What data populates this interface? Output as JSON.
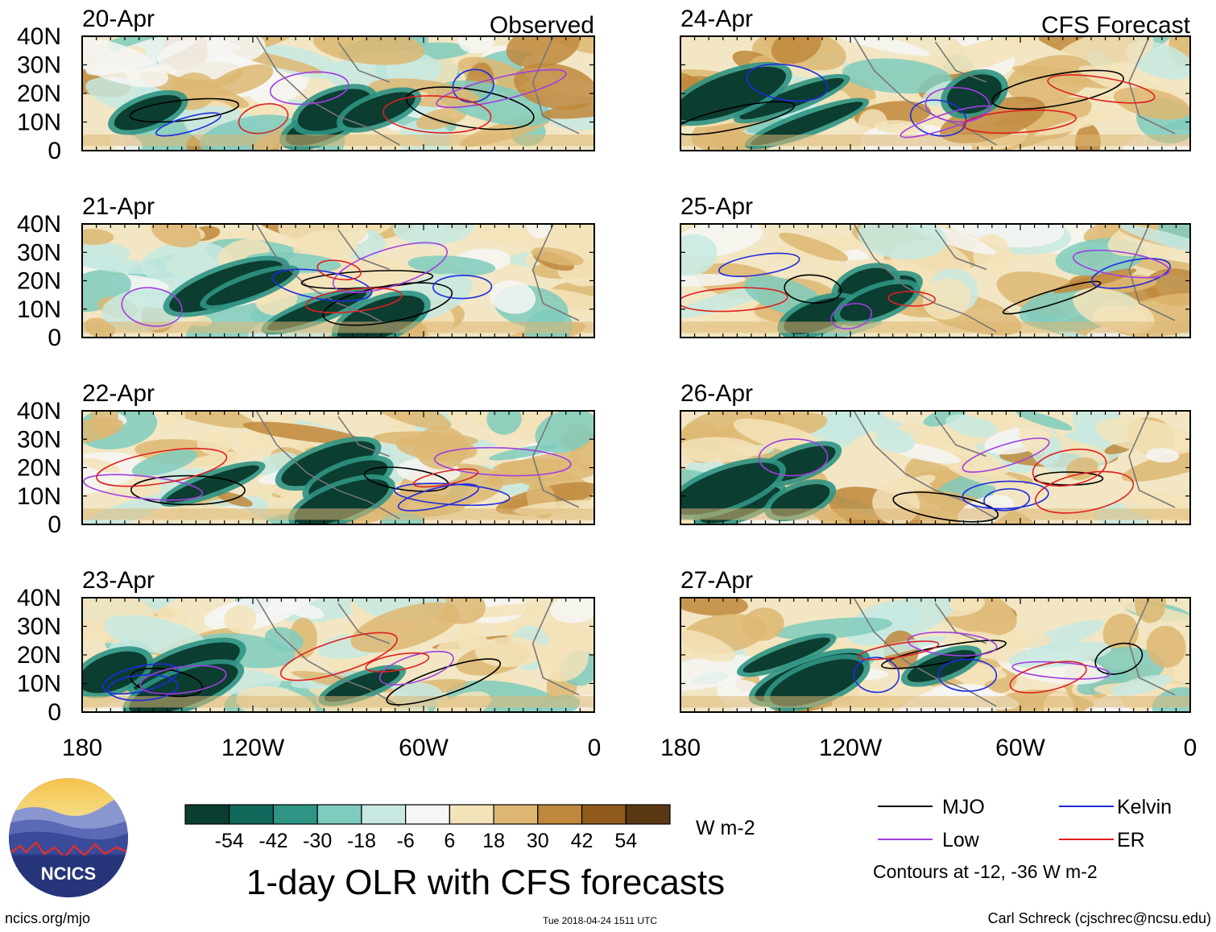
{
  "chart_data": {
    "type": "heatmap",
    "title": "1-day OLR with CFS forecasts",
    "observed_label": "Observed",
    "forecast_label": "CFS Forecast",
    "observed_dates": [
      "20-Apr",
      "21-Apr",
      "22-Apr",
      "23-Apr"
    ],
    "forecast_dates": [
      "24-Apr",
      "25-Apr",
      "26-Apr",
      "27-Apr"
    ],
    "lat_ticks": [
      "40N",
      "30N",
      "20N",
      "10N",
      "0"
    ],
    "lat_range": [
      0,
      40
    ],
    "lon_ticks": [
      "180",
      "120W",
      "60W",
      "0"
    ],
    "lon_range": [
      -180,
      0
    ],
    "colorbar": {
      "unit": "W m-2",
      "tick_labels": [
        "-54",
        "-42",
        "-30",
        "-18",
        "-6",
        "6",
        "18",
        "30",
        "42",
        "54"
      ],
      "colors": [
        "#0b3d31",
        "#11695c",
        "#2f9484",
        "#7fcbbd",
        "#c7e9e2",
        "#f6f6f4",
        "#f3e3ba",
        "#ddb772",
        "#c0883c",
        "#8f5a1c",
        "#5a3713"
      ]
    },
    "legend": [
      {
        "label": "MJO",
        "color": "#000000"
      },
      {
        "label": "Kelvin",
        "color": "#1f2be0"
      },
      {
        "label": "Low",
        "color": "#a23ee0"
      },
      {
        "label": "ER",
        "color": "#e02020"
      }
    ],
    "contour_note": "Contours at -12, -36 W m-2"
  },
  "footer": {
    "left": "ncics.org/mjo",
    "center": "Tue 2018-04-24 1511 UTC",
    "right": "Carl Schreck (cjschrec@ncsu.edu)",
    "logo_text": "NCICS"
  }
}
